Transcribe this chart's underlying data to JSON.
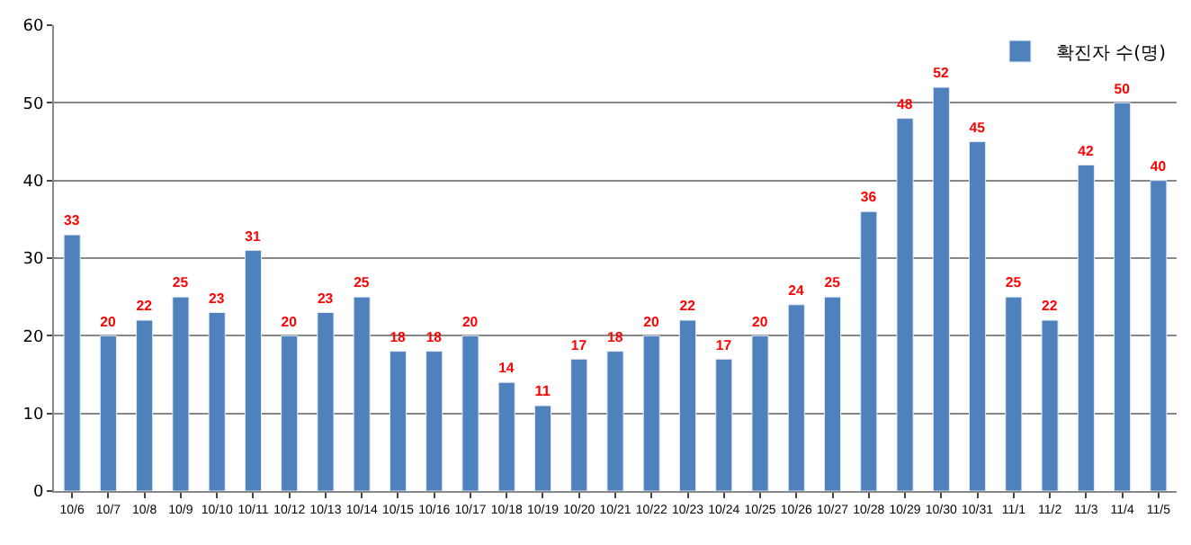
{
  "chart_data": {
    "type": "bar",
    "categories": [
      "10/6",
      "10/7",
      "10/8",
      "10/9",
      "10/10",
      "10/11",
      "10/12",
      "10/13",
      "10/14",
      "10/15",
      "10/16",
      "10/17",
      "10/18",
      "10/19",
      "10/20",
      "10/21",
      "10/22",
      "10/23",
      "10/24",
      "10/25",
      "10/26",
      "10/27",
      "10/28",
      "10/29",
      "10/30",
      "10/31",
      "11/1",
      "11/2",
      "11/3",
      "11/4",
      "11/5"
    ],
    "series": [
      {
        "name": "확진자 수(명)",
        "color": "#4f81bd",
        "values": [
          33,
          20,
          22,
          25,
          23,
          31,
          20,
          23,
          25,
          18,
          18,
          20,
          14,
          11,
          17,
          18,
          20,
          22,
          17,
          20,
          24,
          25,
          36,
          48,
          52,
          45,
          25,
          22,
          42,
          50,
          40
        ]
      }
    ],
    "ylim": [
      0,
      60
    ],
    "yticks": [
      0,
      10,
      20,
      30,
      40,
      50,
      60
    ],
    "grid": "y",
    "legend": "top right",
    "data_labels": true
  }
}
